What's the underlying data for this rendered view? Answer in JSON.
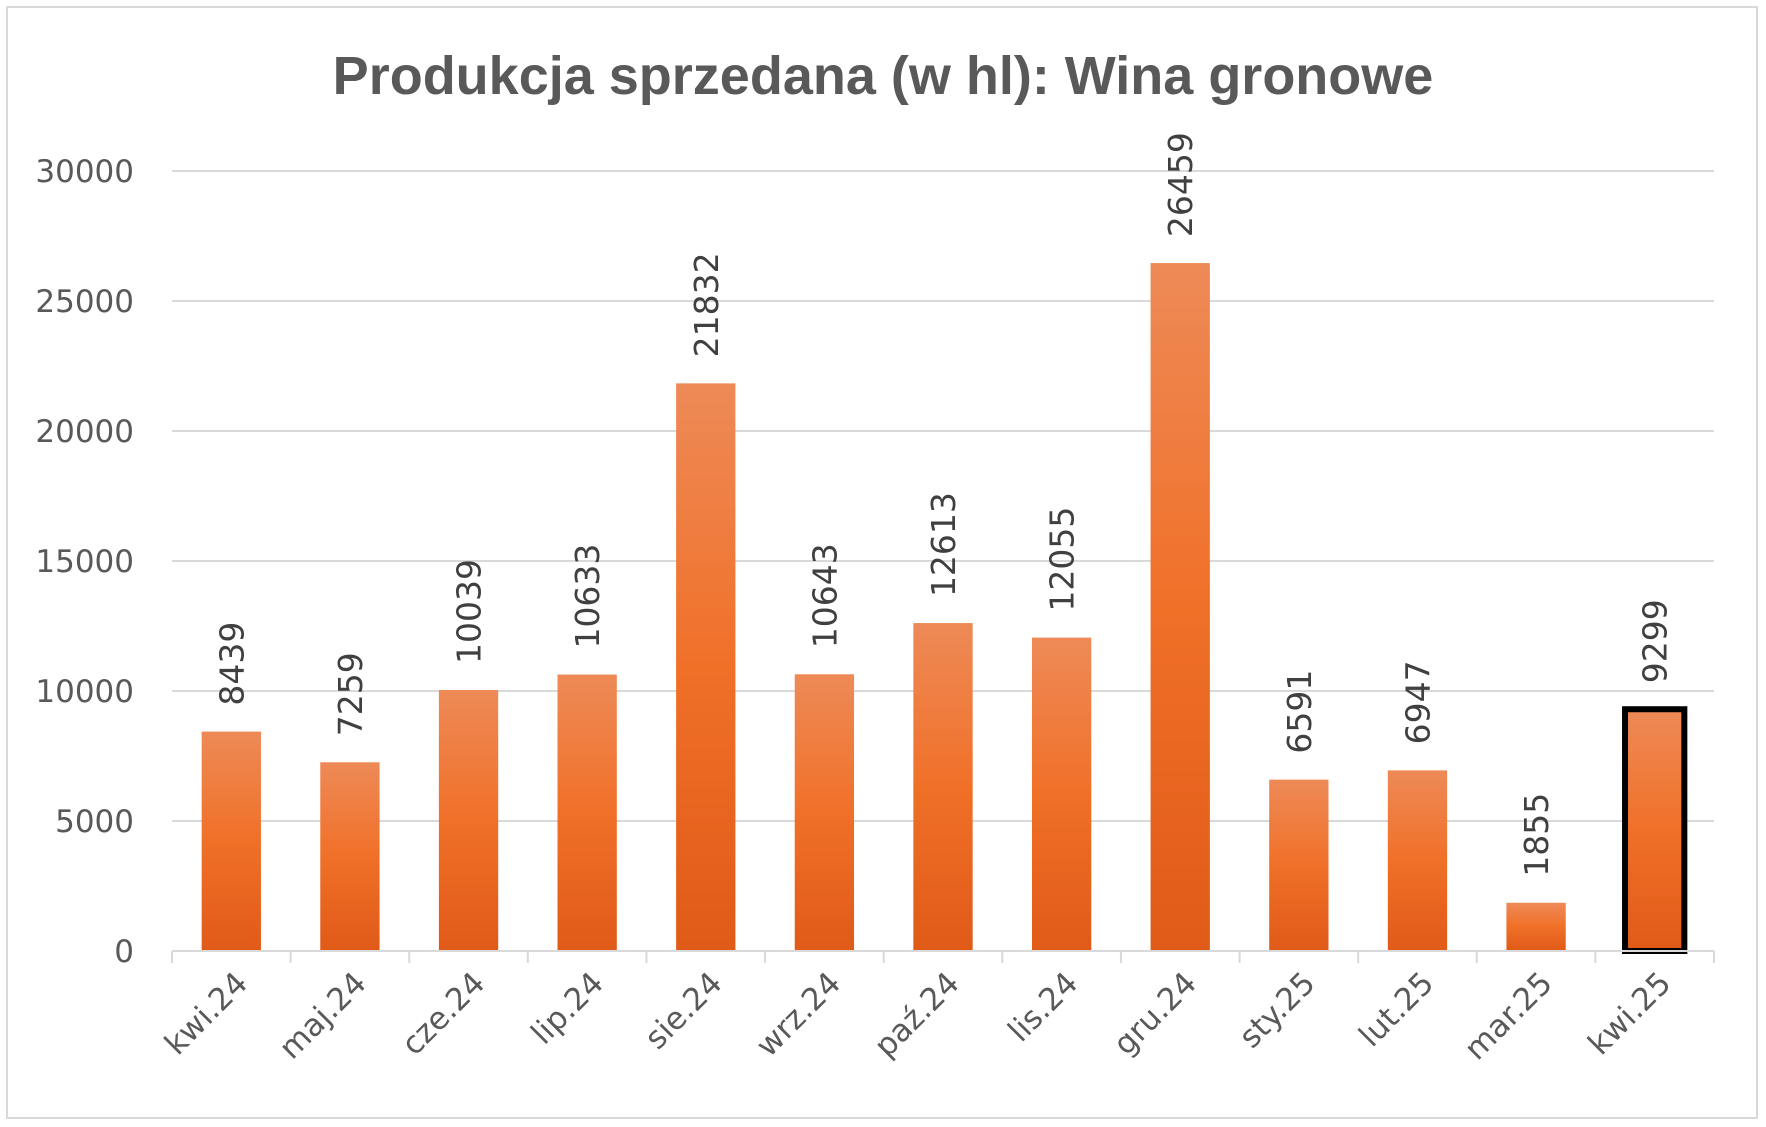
{
  "chart_data": {
    "type": "bar",
    "title": "Produkcja sprzedana (w hl): Wina gronowe",
    "xlabel": "",
    "ylabel": "",
    "categories": [
      "kwi.24",
      "maj.24",
      "cze.24",
      "lip.24",
      "sie.24",
      "wrz.24",
      "paź.24",
      "lis.24",
      "gru.24",
      "sty.25",
      "lut.25",
      "mar.25",
      "kwi.25"
    ],
    "values": [
      8439,
      7259,
      10039,
      10633,
      21832,
      10643,
      12613,
      12055,
      26459,
      6591,
      6947,
      1855,
      9299
    ],
    "ylim": [
      0,
      30000
    ],
    "yticks": [
      0,
      5000,
      10000,
      15000,
      20000,
      25000,
      30000
    ],
    "grid": true,
    "legend": "none",
    "data_labels": true,
    "highlighted_category": "kwi.25",
    "colors": {
      "bar_top": "#ee8a57",
      "bar_mid": "#f07028",
      "bar_bottom": "#e05a18",
      "highlight_outline": "#000000",
      "grid": "#d9d9d9",
      "text": "#595959"
    }
  }
}
